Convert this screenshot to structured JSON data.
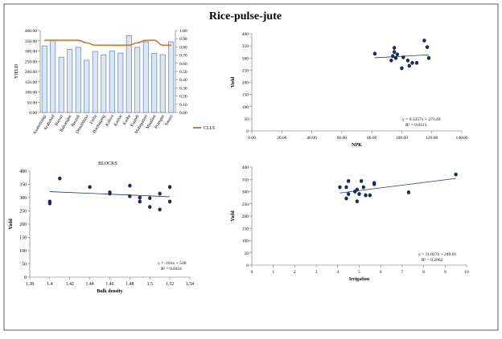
{
  "title": "Rice-pulse-jute",
  "chart_data": [
    {
      "id": "blocks",
      "type": "bar",
      "xlabel": "BLOCKS",
      "ylabel": "YIELD",
      "ylim": [
        0,
        400
      ],
      "y_ticks": [
        "0.00",
        "50.00",
        "100.00",
        "150.00",
        "200.00",
        "250.00",
        "300.00",
        "350.00",
        "400.00"
      ],
      "y2lim": [
        0,
        1
      ],
      "y2_ticks": [
        "0.00",
        "0.10",
        "0.20",
        "0.30",
        "0.40",
        "0.50",
        "0.60",
        "0.70",
        "0.80",
        "0.90",
        "1.00"
      ],
      "categories": [
        "Asansmangi",
        "Arabahed",
        "Baruzi",
        "Balrampur",
        "Barauli",
        "Dharahbasa",
        "Fatha",
        "Harinagang",
        "Kalsva",
        "Karhar",
        "Kasba",
        "Kuandi",
        "Mahapahari",
        "Maudani",
        "Prampur",
        "Sasozi"
      ],
      "series": [
        {
          "kind": "bar",
          "color": "#dbe6f3",
          "edge": "#4a6fa5",
          "values": [
            325,
            350,
            270,
            308,
            318,
            255,
            298,
            282,
            300,
            290,
            375,
            318,
            345,
            288,
            282,
            345
          ]
        },
        {
          "kind": "line",
          "axis": "right",
          "name": "CLUI",
          "color": "#a0422a",
          "values": [
            0.88,
            0.88,
            0.88,
            0.88,
            0.88,
            0.85,
            0.82,
            0.82,
            0.82,
            0.82,
            0.82,
            0.85,
            0.88,
            0.88,
            0.82,
            0.82
          ]
        },
        {
          "kind": "line",
          "axis": "right",
          "color": "#d4a64a",
          "values": [
            0.875,
            0.875,
            0.875,
            0.875,
            0.875,
            0.845,
            0.815,
            0.815,
            0.815,
            0.815,
            0.815,
            0.845,
            0.875,
            0.875,
            0.815,
            0.815
          ]
        }
      ],
      "legend": {
        "position": "right",
        "label": "CLUI"
      }
    },
    {
      "id": "npk",
      "type": "scatter",
      "xlabel": "NPK",
      "ylabel": "Yield",
      "xlim": [
        0,
        140
      ],
      "x_ticks": [
        "0.00",
        "20.00",
        "40.00",
        "60.00",
        "80.00",
        "100.00",
        "120.00",
        "140.00"
      ],
      "ylim": [
        0,
        400
      ],
      "y_ticks": [
        "0",
        "50",
        "100",
        "150",
        "200",
        "250",
        "300",
        "350",
        "400"
      ],
      "points": [
        [
          82,
          318
        ],
        [
          93,
          290
        ],
        [
          94,
          308
        ],
        [
          95,
          325
        ],
        [
          95,
          342
        ],
        [
          96,
          300
        ],
        [
          97,
          315
        ],
        [
          100,
          258
        ],
        [
          101,
          303
        ],
        [
          104,
          290
        ],
        [
          105,
          268
        ],
        [
          107,
          280
        ],
        [
          110,
          280
        ],
        [
          115,
          372
        ],
        [
          117,
          345
        ],
        [
          118,
          300
        ]
      ],
      "trend": {
        "slope": 0.3357,
        "intercept": 273.49
      },
      "equation": "y = 0.3357x + 273.49",
      "r2": "R² = 0.0113"
    },
    {
      "id": "bulk",
      "type": "scatter",
      "xlabel": "Bulk density",
      "ylabel": "Yield",
      "xlim": [
        1.38,
        1.54
      ],
      "x_ticks": [
        "1.38",
        "1.4",
        "1.42",
        "1.44",
        "1.46",
        "1.48",
        "1.5",
        "1.52",
        "1.54"
      ],
      "ylim": [
        0,
        400
      ],
      "y_ticks": [
        "0",
        "50",
        "100",
        "150",
        "200",
        "250",
        "300",
        "350",
        "400"
      ],
      "points": [
        [
          1.4,
          285
        ],
        [
          1.4,
          278
        ],
        [
          1.41,
          372
        ],
        [
          1.44,
          340
        ],
        [
          1.46,
          320
        ],
        [
          1.46,
          315
        ],
        [
          1.48,
          345
        ],
        [
          1.48,
          305
        ],
        [
          1.49,
          300
        ],
        [
          1.49,
          285
        ],
        [
          1.5,
          298
        ],
        [
          1.5,
          265
        ],
        [
          1.51,
          315
        ],
        [
          1.51,
          255
        ],
        [
          1.52,
          340
        ],
        [
          1.52,
          285
        ]
      ],
      "trend": {
        "slope": -161,
        "intercept": 548
      },
      "equation": "y = -161x + 548",
      "r2": "R² = 0.0431"
    },
    {
      "id": "irrigation",
      "type": "scatter",
      "xlabel": "Irrigation",
      "ylabel": "Yield",
      "xlim": [
        0,
        10
      ],
      "x_ticks": [
        "0",
        "1",
        "2",
        "3",
        "4",
        "5",
        "6",
        "7",
        "8",
        "9",
        "10"
      ],
      "ylim": [
        0,
        400
      ],
      "y_ticks": [
        "0",
        "50",
        "100",
        "150",
        "200",
        "250",
        "300",
        "350",
        "400"
      ],
      "points": [
        [
          4.1,
          318
        ],
        [
          4.4,
          318
        ],
        [
          4.4,
          272
        ],
        [
          4.5,
          290
        ],
        [
          4.5,
          343
        ],
        [
          4.8,
          300
        ],
        [
          4.9,
          308
        ],
        [
          4.9,
          260
        ],
        [
          5.0,
          290
        ],
        [
          5.1,
          343
        ],
        [
          5.2,
          318
        ],
        [
          5.3,
          285
        ],
        [
          5.5,
          285
        ],
        [
          5.7,
          335
        ],
        [
          5.7,
          330
        ],
        [
          7.3,
          297
        ],
        [
          9.5,
          370
        ]
      ],
      "trend": {
        "slope": 11.027,
        "intercept": 249.01
      },
      "equation": "y = 11.027x + 249.01",
      "r2": "R² = 0.2062"
    }
  ]
}
